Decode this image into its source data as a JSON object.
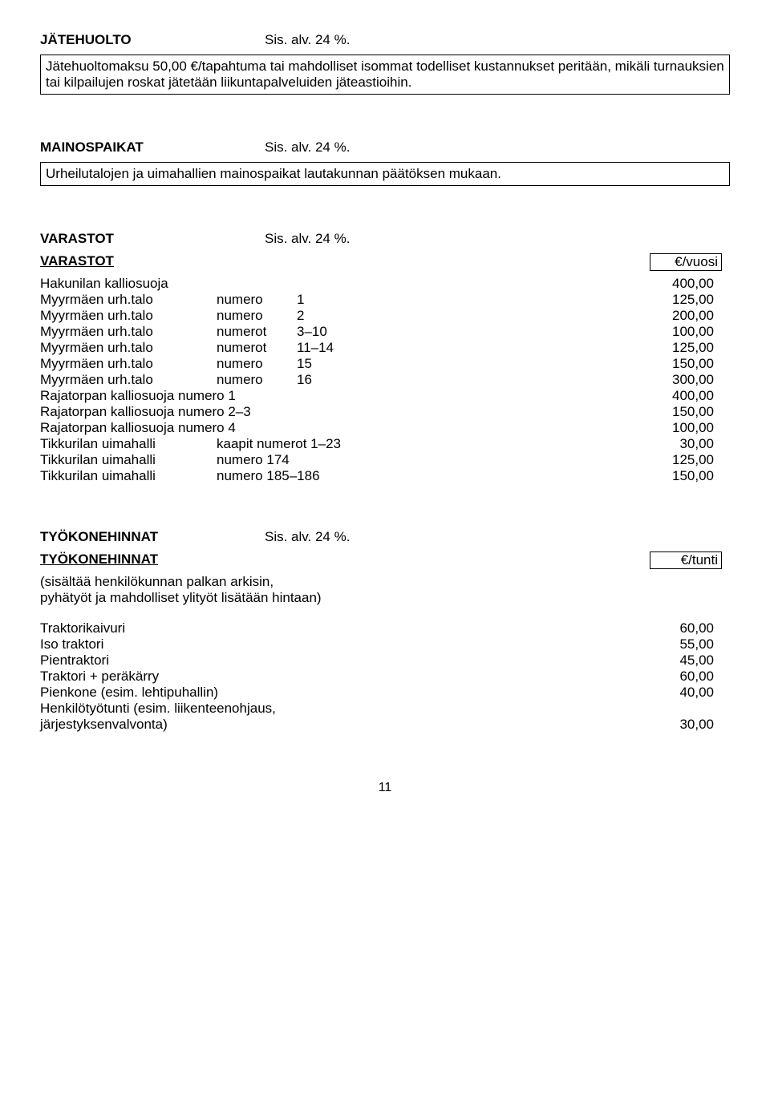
{
  "jatehuolto": {
    "title": "JÄTEHUOLTO",
    "tax": "Sis. alv. 24 %.",
    "body": "Jätehuoltomaksu 50,00 €/tapahtuma tai mahdolliset isommat todelliset kustannukset peritään, mikäli turnauksien tai kilpailujen roskat jätetään liikuntapalveluiden jäteastioihin."
  },
  "mainospaikat": {
    "title": "MAINOSPAIKAT",
    "tax": "Sis. alv. 24 %.",
    "body": "Urheilutalojen ja uimahallien mainospaikat lautakunnan päätöksen mukaan."
  },
  "varastot": {
    "title": "VARASTOT",
    "tax": "Sis. alv. 24 %.",
    "table_title": "VARASTOT",
    "unit": "€/vuosi",
    "rows": [
      {
        "c1": "Hakunilan kalliosuoja",
        "c2": "",
        "c3": "",
        "val": "400,00"
      },
      {
        "c1": "Myyrmäen urh.talo",
        "c2": "numero",
        "c3": "1",
        "val": "125,00"
      },
      {
        "c1": "Myyrmäen urh.talo",
        "c2": "numero",
        "c3": "2",
        "val": "200,00"
      },
      {
        "c1": "Myyrmäen urh.talo",
        "c2": "numerot",
        "c3": "3–10",
        "val": "100,00"
      },
      {
        "c1": "Myyrmäen urh.talo",
        "c2": "numerot",
        "c3": "11–14",
        "val": "125,00"
      },
      {
        "c1": "Myyrmäen urh.talo",
        "c2": "numero",
        "c3": "15",
        "val": "150,00"
      },
      {
        "c1": "Myyrmäen urh.talo",
        "c2": "numero",
        "c3": "16",
        "val": "300,00"
      },
      {
        "c1w": "Rajatorpan kalliosuoja numero 1",
        "val": "400,00"
      },
      {
        "c1w": "Rajatorpan kalliosuoja numero 2–3",
        "val": "150,00"
      },
      {
        "c1w": "Rajatorpan kalliosuoja numero 4",
        "val": "100,00"
      },
      {
        "c1": "Tikkurilan uimahalli",
        "c2w": "kaapit numerot 1–23",
        "val": "30,00"
      },
      {
        "c1": "Tikkurilan uimahalli",
        "c2w": "numero 174",
        "val": "125,00"
      },
      {
        "c1": "Tikkurilan uimahalli",
        "c2w": "numero 185–186",
        "val": "150,00"
      }
    ]
  },
  "tyokone": {
    "title": "TYÖKONEHINNAT",
    "tax": "Sis. alv. 24 %.",
    "table_title": "TYÖKONEHINNAT",
    "unit": "€/tunti",
    "note1": "(sisältää henkilökunnan palkan arkisin,",
    "note2": "pyhätyöt ja mahdolliset ylityöt lisätään hintaan)",
    "rows": [
      {
        "label": "Traktorikaivuri",
        "val": "60,00"
      },
      {
        "label": "Iso traktori",
        "val": "55,00"
      },
      {
        "label": "Pientraktori",
        "val": "45,00"
      },
      {
        "label": "Traktori + peräkärry",
        "val": "60,00"
      },
      {
        "label": "Pienkone (esim. lehtipuhallin)",
        "val": "40,00"
      },
      {
        "label": "Henkilötyötunti (esim. liikenteenohjaus,",
        "val": ""
      },
      {
        "label": "järjestyksenvalvonta)",
        "val": "30,00"
      }
    ]
  },
  "page": "11"
}
